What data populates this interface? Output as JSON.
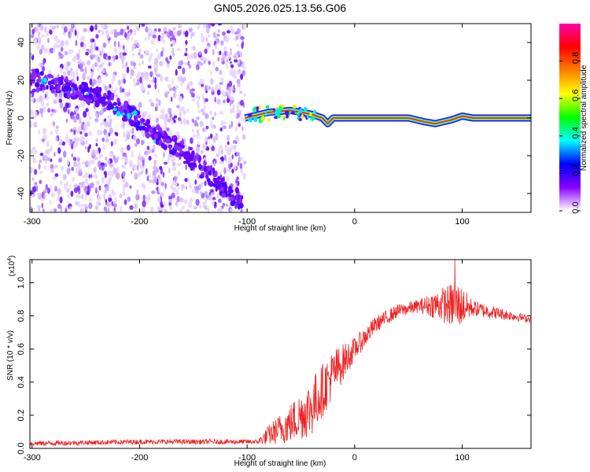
{
  "title": "GN05.2026.025.13.56.G06",
  "chart_data": [
    {
      "type": "heatmap",
      "xlabel": "Height of straight line (km)",
      "ylabel": "Frequency (Hz)",
      "xlim": [
        -302,
        164
      ],
      "ylim": [
        -50,
        50
      ],
      "xticks": [
        -300,
        -200,
        -100,
        0,
        100
      ],
      "yticks": [
        40,
        20,
        0,
        -20,
        -40
      ],
      "xtick_labels": [
        "-300",
        "-200",
        "-100",
        "0",
        "100"
      ],
      "ytick_labels": [
        "40",
        "20",
        "0",
        "-20",
        "-40"
      ],
      "noise_region_x": [
        -302,
        -102
      ],
      "diagonal_line": {
        "x": [
          -302,
          -230,
          -160,
          -105
        ],
        "y": [
          22,
          10,
          -18,
          -45
        ]
      },
      "signal_line": {
        "x": [
          -102,
          -80,
          -60,
          -40,
          -30,
          -25,
          -20,
          0,
          50,
          65,
          75,
          90,
          100,
          110,
          164
        ],
        "y": [
          0,
          3,
          4,
          2,
          0,
          -3,
          0,
          0,
          0,
          -2,
          -3,
          -1,
          1,
          0,
          0
        ]
      },
      "colorbar": {
        "label": "Normalized spectral amplitude",
        "ticks": [
          0.0,
          0.2,
          0.4,
          0.6,
          0.8
        ],
        "tick_labels": [
          "0.0",
          "0.2",
          "0.4",
          "0.6",
          "0.8"
        ],
        "range": [
          0,
          1
        ],
        "colors": [
          "#ffffff",
          "#8800ff",
          "#0000ff",
          "#00ffff",
          "#00ff00",
          "#ffff00",
          "#ff8000",
          "#ff0000",
          "#ff00aa"
        ]
      }
    },
    {
      "type": "line",
      "xlabel": "Height of straight line (km)",
      "ylabel": "SNR (10 * v/v)",
      "scale_label": "(x10",
      "scale_exp": "4",
      "scale_close": ")",
      "xlim": [
        -302,
        164
      ],
      "ylim": [
        0,
        1.14
      ],
      "xticks": [
        -300,
        -200,
        -100,
        0,
        100
      ],
      "yticks": [
        0.0,
        0.2,
        0.4,
        0.6,
        0.8,
        1.0
      ],
      "xtick_labels": [
        "-300",
        "-200",
        "-100",
        "0",
        "100"
      ],
      "ytick_labels": [
        "0.0",
        "0.2",
        "0.4",
        "0.6",
        "0.8",
        "1.0"
      ],
      "line_color": "#ee2222",
      "trend": {
        "x": [
          -302,
          -200,
          -90,
          -80,
          -60,
          -40,
          -20,
          0,
          20,
          40,
          60,
          80,
          100,
          130,
          164
        ],
        "y": [
          0.03,
          0.04,
          0.04,
          0.08,
          0.15,
          0.25,
          0.45,
          0.6,
          0.75,
          0.83,
          0.86,
          0.87,
          0.86,
          0.82,
          0.78
        ]
      },
      "noise_amplitude": {
        "x": [
          -302,
          -90,
          -80,
          -60,
          -40,
          -20,
          0,
          20,
          40,
          60,
          80,
          95,
          110,
          164
        ],
        "y": [
          0.015,
          0.015,
          0.06,
          0.12,
          0.18,
          0.15,
          0.07,
          0.05,
          0.04,
          0.04,
          0.1,
          0.15,
          0.05,
          0.02
        ]
      },
      "peak": {
        "x": 93,
        "y": 1.14
      }
    }
  ]
}
